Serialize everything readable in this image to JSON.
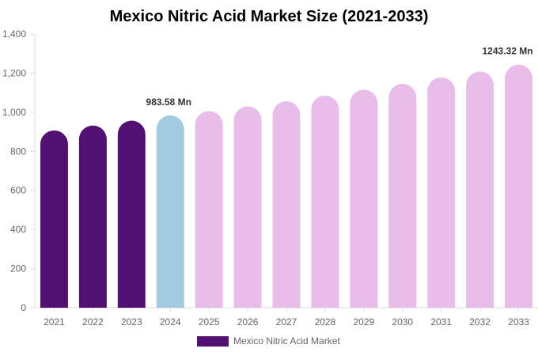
{
  "chart_data": {
    "type": "bar",
    "title": "Mexico Nitric Acid Market Size (2021-2033)",
    "xlabel": "",
    "ylabel": "",
    "ylim": [
      0,
      1400
    ],
    "yticks": [
      0,
      200,
      400,
      600,
      800,
      1000,
      1200,
      1400
    ],
    "ytick_labels": [
      "0",
      "200",
      "400",
      "600",
      "800",
      "1,000",
      "1,200",
      "1,400"
    ],
    "categories": [
      "2021",
      "2022",
      "2023",
      "2024",
      "2025",
      "2026",
      "2027",
      "2028",
      "2029",
      "2030",
      "2031",
      "2032",
      "2033"
    ],
    "series": [
      {
        "name": "Mexico Nitric Acid Market",
        "values": [
          907,
          932,
          957,
          983.58,
          1006,
          1030,
          1056,
          1085,
          1115,
          1145,
          1178,
          1208,
          1243.32
        ]
      }
    ],
    "bar_colors": [
      "#521172",
      "#521172",
      "#521172",
      "#a3cadf",
      "#e8bde9",
      "#e8bde9",
      "#e8bde9",
      "#e8bde9",
      "#e8bde9",
      "#e8bde9",
      "#e8bde9",
      "#e8bde9",
      "#e8bde9"
    ],
    "data_labels": [
      {
        "category": "2024",
        "text": "983.58 Mn"
      },
      {
        "category": "2033",
        "text": "1243.32 Mn"
      }
    ],
    "legend": {
      "position": "bottom",
      "label": "Mexico Nitric Acid Market",
      "color": "#521172"
    },
    "grid": false
  }
}
